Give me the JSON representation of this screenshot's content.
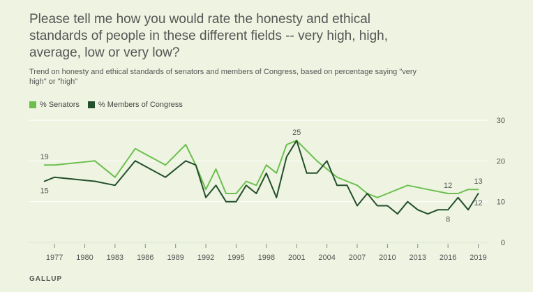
{
  "header": {
    "title": "Please tell me how you would rate the honesty and ethical standards of people in these different fields -- very high, high, average, low or very low?",
    "subtitle": "Trend on honesty and ethical standards of senators and members of Congress, based on percentage saying \"very high\" or \"high\""
  },
  "footer": {
    "source": "GALLUP"
  },
  "colors": {
    "senators": "#6cbf4f",
    "congress": "#234f2c",
    "background": "#eef4e1",
    "grid": "#ffffff"
  },
  "chart_data": {
    "type": "line",
    "title": "Please tell me how you would rate the honesty and ethical standards of people in these different fields -- very high, high, average, low or very low?",
    "xlabel": "",
    "ylabel": "",
    "xlim": [
      1974.5,
      2020
    ],
    "ylim": [
      0,
      30
    ],
    "x_ticks": [
      1977,
      1980,
      1983,
      1986,
      1989,
      1992,
      1995,
      1998,
      2001,
      2004,
      2007,
      2010,
      2013,
      2016,
      2019
    ],
    "y_ticks": [
      0,
      10,
      20,
      30
    ],
    "grid": true,
    "legend_position": "top-left",
    "series": [
      {
        "name": "% Senators",
        "color": "#6cbf4f",
        "x": [
          1976,
          1977,
          1981,
          1983,
          1985,
          1988,
          1990,
          1991,
          1992,
          1993,
          1994,
          1995,
          1996,
          1997,
          1998,
          1999,
          2000,
          2001,
          2003,
          2005,
          2006,
          2007,
          2008,
          2009,
          2010,
          2012,
          2014,
          2016,
          2017,
          2018,
          2019
        ],
        "y": [
          19,
          19,
          20,
          16,
          23,
          19,
          24,
          19,
          13,
          18,
          12,
          12,
          15,
          14,
          19,
          17,
          24,
          25,
          20,
          16,
          15,
          14,
          12,
          11,
          12,
          14,
          13,
          12,
          12,
          13,
          13
        ]
      },
      {
        "name": "% Members of Congress",
        "color": "#234f2c",
        "x": [
          1976,
          1977,
          1981,
          1983,
          1985,
          1988,
          1990,
          1991,
          1992,
          1993,
          1994,
          1995,
          1996,
          1997,
          1998,
          1999,
          2000,
          2001,
          2002,
          2003,
          2004,
          2005,
          2006,
          2007,
          2008,
          2009,
          2010,
          2011,
          2012,
          2013,
          2014,
          2015,
          2016,
          2017,
          2018,
          2019
        ],
        "y": [
          15,
          16,
          15,
          14,
          20,
          16,
          20,
          19,
          11,
          14,
          10,
          10,
          14,
          12,
          17,
          11,
          21,
          25,
          17,
          17,
          20,
          14,
          14,
          9,
          12,
          9,
          9,
          7,
          10,
          8,
          7,
          8,
          8,
          11,
          8,
          12
        ]
      }
    ],
    "annotations": [
      {
        "series": 0,
        "x": 1976,
        "y": 19,
        "text": "19",
        "pos": "above"
      },
      {
        "series": 1,
        "x": 1976,
        "y": 15,
        "text": "15",
        "pos": "below"
      },
      {
        "series": 0,
        "x": 2001,
        "y": 25,
        "text": "25",
        "pos": "above"
      },
      {
        "series": 0,
        "x": 2016,
        "y": 12,
        "text": "12",
        "pos": "above"
      },
      {
        "series": 1,
        "x": 2016,
        "y": 8,
        "text": "8",
        "pos": "below"
      },
      {
        "series": 0,
        "x": 2019,
        "y": 13,
        "text": "13",
        "pos": "above"
      },
      {
        "series": 1,
        "x": 2019,
        "y": 12,
        "text": "12",
        "pos": "below"
      }
    ]
  }
}
